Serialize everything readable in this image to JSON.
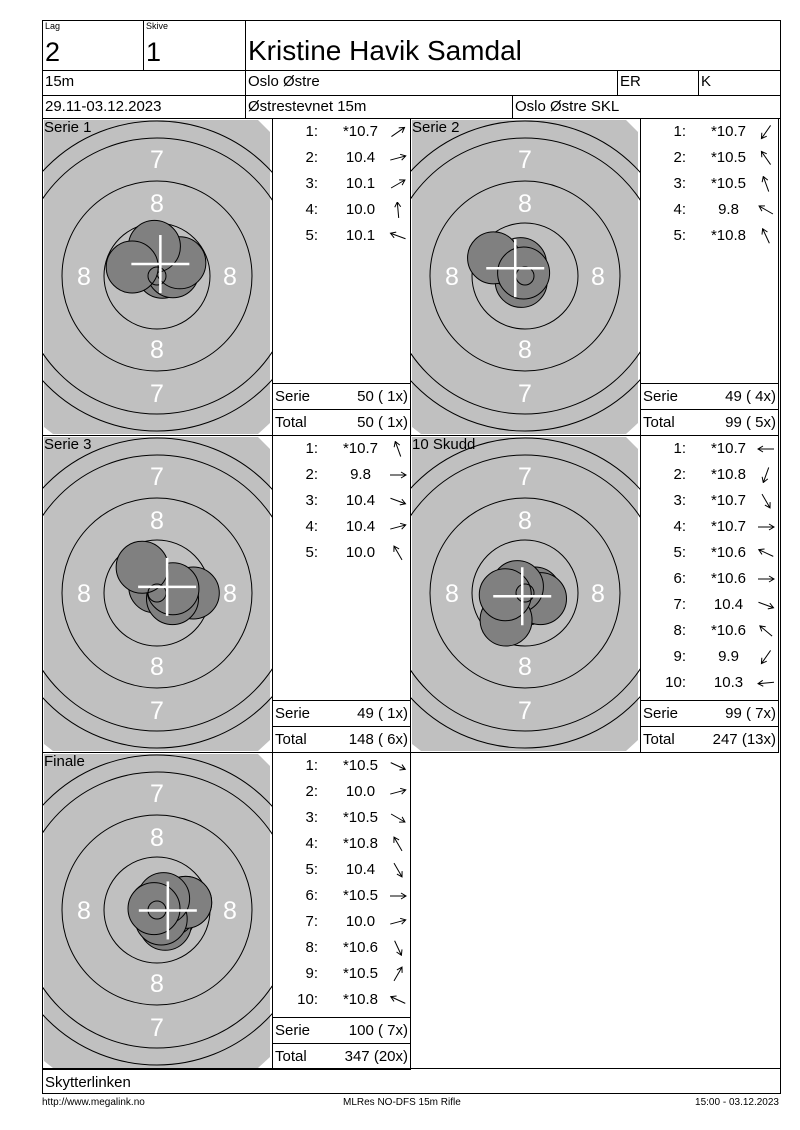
{
  "header": {
    "lag_label": "Lag",
    "lag": "2",
    "skive_label": "Skive",
    "skive": "1",
    "name": "Kristine Havik Samdal",
    "distance": "15m",
    "club": "Oslo Østre",
    "class": "ER",
    "gender": "K",
    "date": "29.11-03.12.2023",
    "event": "Østrestevnet 15m",
    "organizer": "Oslo Østre SKL"
  },
  "colors": {
    "target": "#c0c0c0",
    "shot": "#808080",
    "ring_label": "#ffffff"
  },
  "target": {
    "ring_labels": [
      "7",
      "8",
      "8",
      "8",
      "8",
      "7"
    ]
  },
  "panels": [
    {
      "title": "Serie 1",
      "shots": [
        {
          "n": "1:",
          "v": "*10.7",
          "s": 10.7,
          "dir": 35
        },
        {
          "n": "2:",
          "v": "10.4",
          "s": 10.4,
          "dir": 15
        },
        {
          "n": "3:",
          "v": "10.1",
          "s": 10.1,
          "dir": 30
        },
        {
          "n": "4:",
          "v": "10.0",
          "s": 10.0,
          "dir": 95
        },
        {
          "n": "5:",
          "v": "10.1",
          "s": 10.1,
          "dir": 160
        }
      ],
      "serie_label": "Serie",
      "serie": "50 ( 1x)",
      "total_label": "Total",
      "total": "50 ( 1x)"
    },
    {
      "title": "Serie 2",
      "shots": [
        {
          "n": "1:",
          "v": "*10.7",
          "s": 10.7,
          "dir": 235
        },
        {
          "n": "2:",
          "v": "*10.5",
          "s": 10.5,
          "dir": 125
        },
        {
          "n": "3:",
          "v": "*10.5",
          "s": 10.5,
          "dir": 110
        },
        {
          "n": "4:",
          "v": "9.8",
          "s": 9.8,
          "dir": 150
        },
        {
          "n": "5:",
          "v": "*10.8",
          "s": 10.8,
          "dir": 115
        }
      ],
      "serie_label": "Serie",
      "serie": "49 ( 4x)",
      "total_label": "Total",
      "total": "99 ( 5x)"
    },
    {
      "title": "Serie 3",
      "shots": [
        {
          "n": "1:",
          "v": "*10.7",
          "s": 10.7,
          "dir": 110
        },
        {
          "n": "2:",
          "v": "9.8",
          "s": 9.8,
          "dir": 0
        },
        {
          "n": "3:",
          "v": "10.4",
          "s": 10.4,
          "dir": -20
        },
        {
          "n": "4:",
          "v": "10.4",
          "s": 10.4,
          "dir": 15
        },
        {
          "n": "5:",
          "v": "10.0",
          "s": 10.0,
          "dir": 120
        }
      ],
      "serie_label": "Serie",
      "serie": "49 ( 1x)",
      "total_label": "Total",
      "total": "148 ( 6x)"
    },
    {
      "title": "10 Skudd",
      "shots": [
        {
          "n": "1:",
          "v": "*10.7",
          "s": 10.7,
          "dir": 180
        },
        {
          "n": "2:",
          "v": "*10.8",
          "s": 10.8,
          "dir": 250
        },
        {
          "n": "3:",
          "v": "*10.7",
          "s": 10.7,
          "dir": 300
        },
        {
          "n": "4:",
          "v": "*10.7",
          "s": 10.7,
          "dir": 0
        },
        {
          "n": "5:",
          "v": "*10.6",
          "s": 10.6,
          "dir": 155
        },
        {
          "n": "6:",
          "v": "*10.6",
          "s": 10.6,
          "dir": 0
        },
        {
          "n": "7:",
          "v": "10.4",
          "s": 10.4,
          "dir": 340
        },
        {
          "n": "8:",
          "v": "*10.6",
          "s": 10.6,
          "dir": 140
        },
        {
          "n": "9:",
          "v": "9.9",
          "s": 9.9,
          "dir": 235
        },
        {
          "n": "10:",
          "v": "10.3",
          "s": 10.3,
          "dir": 185
        }
      ],
      "serie_label": "Serie",
      "serie": "99 ( 7x)",
      "total_label": "Total",
      "total": "247 (13x)"
    },
    {
      "title": "Finale",
      "shots": [
        {
          "n": "1:",
          "v": "*10.5",
          "s": 10.5,
          "dir": 335
        },
        {
          "n": "2:",
          "v": "10.0",
          "s": 10.0,
          "dir": 15
        },
        {
          "n": "3:",
          "v": "*10.5",
          "s": 10.5,
          "dir": 330
        },
        {
          "n": "4:",
          "v": "*10.8",
          "s": 10.8,
          "dir": 120
        },
        {
          "n": "5:",
          "v": "10.4",
          "s": 10.4,
          "dir": 300
        },
        {
          "n": "6:",
          "v": "*10.5",
          "s": 10.5,
          "dir": 0
        },
        {
          "n": "7:",
          "v": "10.0",
          "s": 10.0,
          "dir": 15
        },
        {
          "n": "8:",
          "v": "*10.6",
          "s": 10.6,
          "dir": 295
        },
        {
          "n": "9:",
          "v": "*10.5",
          "s": 10.5,
          "dir": 60
        },
        {
          "n": "10:",
          "v": "*10.8",
          "s": 10.8,
          "dir": 155
        }
      ],
      "serie_label": "Serie",
      "serie": "100 ( 7x)",
      "total_label": "Total",
      "total": "347 (20x)"
    }
  ],
  "footer": {
    "source": "Skytterlinken",
    "url": "http://www.megalink.no",
    "program": "MLRes NO-DFS 15m Rifle",
    "printed": "15:00 - 03.12.2023"
  }
}
